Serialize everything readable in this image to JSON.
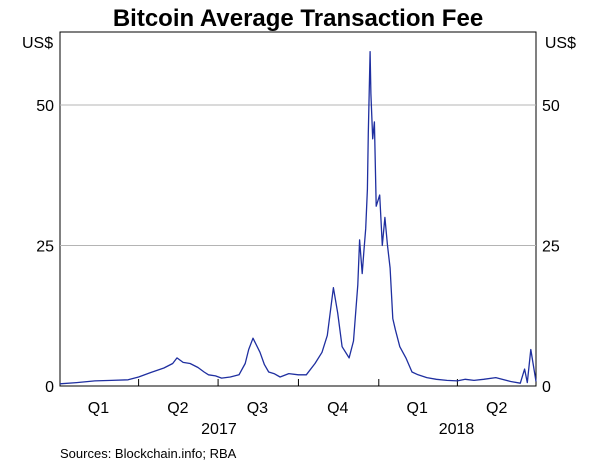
{
  "chart_data": {
    "type": "line",
    "title": "Bitcoin Average Transaction Fee",
    "left_unit": "US$",
    "right_unit": "US$",
    "ylim": [
      0,
      63
    ],
    "y_ticks": [
      0,
      25,
      50
    ],
    "grid": "horizontal",
    "xlim": [
      "2017-01-01",
      "2018-06-30"
    ],
    "quarters": [
      {
        "label": "Q1",
        "mid": "2017-02-14"
      },
      {
        "label": "Q2",
        "mid": "2017-05-16"
      },
      {
        "label": "Q3",
        "mid": "2017-08-15"
      },
      {
        "label": "Q4",
        "mid": "2017-11-15"
      },
      {
        "label": "Q1",
        "mid": "2018-02-14"
      },
      {
        "label": "Q2",
        "mid": "2018-05-16"
      }
    ],
    "quarter_boundaries": [
      "2017-04-01",
      "2017-07-01",
      "2017-10-01",
      "2018-01-01",
      "2018-04-01"
    ],
    "years": [
      {
        "label": "2017",
        "mid": "2017-07-02"
      },
      {
        "label": "2018",
        "mid": "2018-03-31"
      }
    ],
    "series": [
      {
        "color": "#1f2fa0",
        "x": [
          "2017-01-01",
          "2017-01-20",
          "2017-02-10",
          "2017-03-01",
          "2017-03-20",
          "2017-04-01",
          "2017-04-15",
          "2017-04-30",
          "2017-05-10",
          "2017-05-15",
          "2017-05-22",
          "2017-05-30",
          "2017-06-08",
          "2017-06-15",
          "2017-06-20",
          "2017-06-28",
          "2017-07-05",
          "2017-07-15",
          "2017-07-25",
          "2017-08-01",
          "2017-08-05",
          "2017-08-10",
          "2017-08-18",
          "2017-08-23",
          "2017-08-28",
          "2017-09-03",
          "2017-09-10",
          "2017-09-20",
          "2017-10-01",
          "2017-10-10",
          "2017-10-20",
          "2017-10-28",
          "2017-11-03",
          "2017-11-10",
          "2017-11-15",
          "2017-11-20",
          "2017-11-28",
          "2017-12-03",
          "2017-12-08",
          "2017-12-10",
          "2017-12-13",
          "2017-12-15",
          "2017-12-17",
          "2017-12-19",
          "2017-12-20",
          "2017-12-22",
          "2017-12-23",
          "2017-12-25",
          "2017-12-27",
          "2017-12-29",
          "2018-01-02",
          "2018-01-05",
          "2018-01-08",
          "2018-01-11",
          "2018-01-14",
          "2018-01-17",
          "2018-01-20",
          "2018-01-25",
          "2018-02-01",
          "2018-02-08",
          "2018-02-15",
          "2018-02-25",
          "2018-03-08",
          "2018-03-20",
          "2018-04-01",
          "2018-04-10",
          "2018-04-20",
          "2018-05-01",
          "2018-05-15",
          "2018-06-01",
          "2018-06-12",
          "2018-06-17",
          "2018-06-20",
          "2018-06-24",
          "2018-06-30"
        ],
        "values": [
          0.4,
          0.6,
          0.9,
          1.0,
          1.1,
          1.6,
          2.4,
          3.2,
          4.0,
          5.0,
          4.2,
          4.0,
          3.3,
          2.5,
          2.0,
          1.8,
          1.4,
          1.6,
          2.0,
          4.0,
          6.5,
          8.5,
          6.0,
          3.8,
          2.5,
          2.2,
          1.6,
          2.2,
          2.0,
          2.0,
          4.0,
          6.0,
          9.0,
          17.5,
          13.0,
          7.0,
          5.0,
          8.0,
          18.0,
          26.0,
          20.0,
          24.0,
          28.0,
          35.0,
          45.0,
          59.5,
          52.0,
          44.0,
          47.0,
          32.0,
          34.0,
          25.0,
          30.0,
          25.0,
          21.0,
          12.0,
          10.0,
          7.0,
          5.0,
          2.5,
          2.0,
          1.5,
          1.2,
          1.0,
          0.9,
          1.2,
          1.0,
          1.2,
          1.5,
          0.8,
          0.5,
          3.0,
          0.6,
          6.5,
          0.8
        ]
      }
    ]
  },
  "source_text": "Sources:   Blockchain.info; RBA"
}
